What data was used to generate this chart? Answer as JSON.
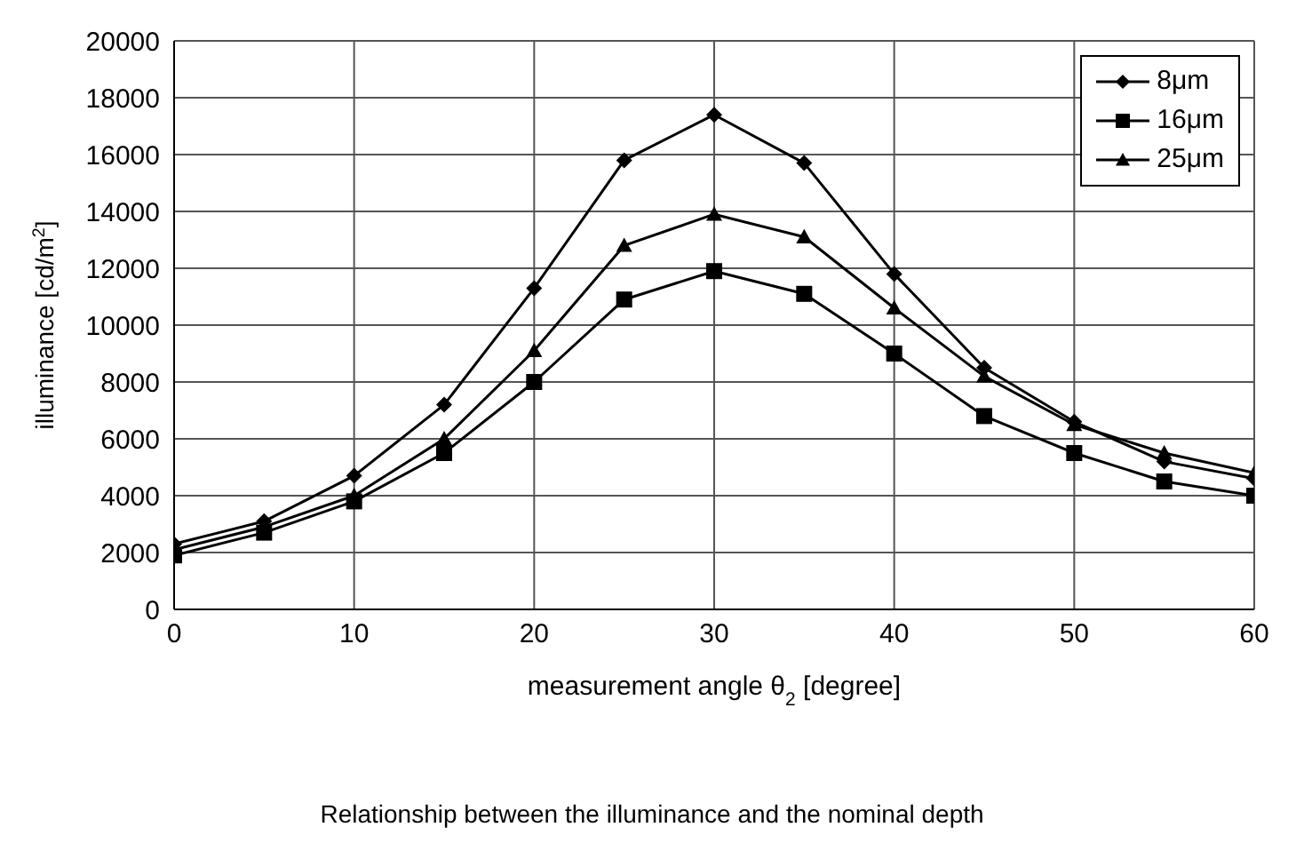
{
  "chart_data": {
    "type": "line",
    "xlabel": "measurement angle θ$_{2}$ [degree]",
    "ylabel": "illuminance [cd/m$^{2}$]",
    "annotations": [
      "Relationship between the illuminance and the nominal depth"
    ],
    "x": [
      0,
      5,
      10,
      15,
      20,
      25,
      30,
      35,
      40,
      45,
      50,
      55,
      60
    ],
    "series": [
      {
        "name": "8μm",
        "color": "#000000",
        "marker": "diamond",
        "values": [
          2300,
          3100,
          4700,
          7200,
          11300,
          15800,
          17400,
          15700,
          11800,
          8500,
          6600,
          5200,
          4600
        ]
      },
      {
        "name": "16μm",
        "color": "#000000",
        "marker": "square",
        "values": [
          1900,
          2700,
          3800,
          5500,
          8000,
          10900,
          11900,
          11100,
          9000,
          6800,
          5500,
          4500,
          4000
        ]
      },
      {
        "name": "25μm",
        "color": "#000000",
        "marker": "triangle",
        "values": [
          2100,
          2900,
          4000,
          6000,
          9100,
          12800,
          13900,
          13100,
          10600,
          8200,
          6500,
          5500,
          4800
        ]
      }
    ],
    "xlim": [
      0,
      60
    ],
    "xticks": [
      0,
      10,
      20,
      30,
      40,
      50,
      60
    ],
    "ylim": [
      0,
      20000
    ],
    "yticks": [
      0,
      2000,
      4000,
      6000,
      8000,
      10000,
      12000,
      14000,
      16000,
      18000,
      20000
    ],
    "grid": true,
    "legend": "top right",
    "line_style": "solid"
  }
}
